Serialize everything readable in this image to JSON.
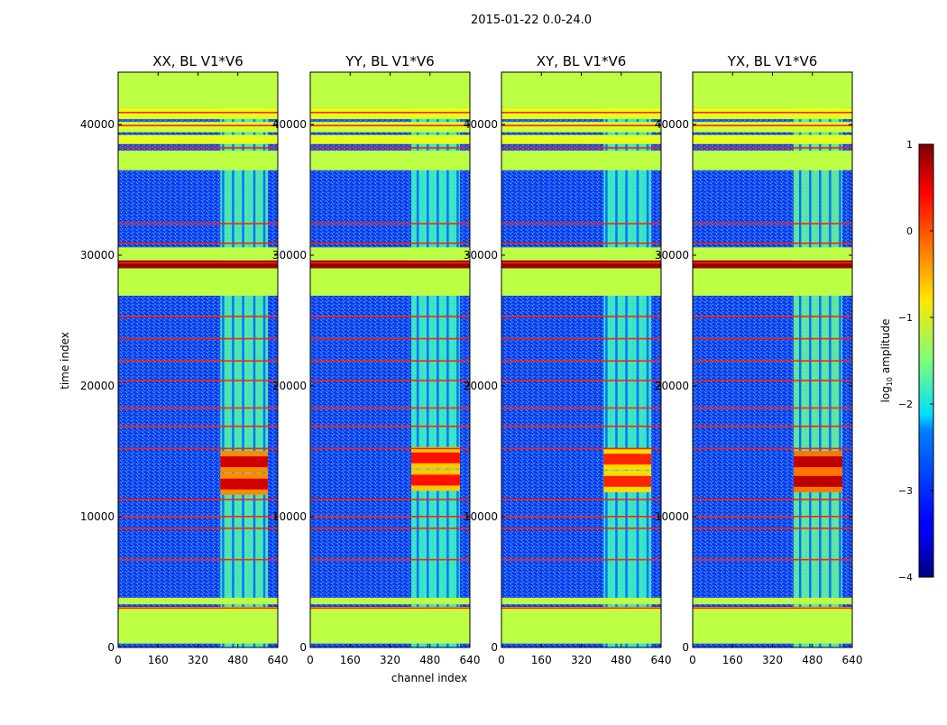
{
  "chart_data": {
    "type": "heatmap",
    "suptitle": "2015-01-22 0.0-24.0",
    "xlabel": "channel index",
    "ylabel": "time index",
    "xlim": [
      0,
      640
    ],
    "ylim": [
      0,
      44000
    ],
    "xticks": [
      0,
      160,
      320,
      480,
      640
    ],
    "yticks": [
      0,
      10000,
      20000,
      30000,
      40000
    ],
    "colorbar": {
      "label": "log10 amplitude",
      "label_base": "log",
      "label_sub": "10",
      "label_rest": " amplitude",
      "ticks": [
        1,
        0,
        -1,
        -2,
        -3,
        -4
      ],
      "vmin": -4,
      "vmax": 1,
      "colormap": "jet"
    },
    "panels": [
      {
        "title": "XX, BL V1*V6",
        "background": -2.9,
        "band_channels": [
          410,
          600
        ],
        "band_value": -1.7,
        "band_lines": [
          420,
          460,
          500,
          545,
          585
        ],
        "hot_rows": [
          12500,
          14200
        ],
        "hot_value": 0.6
      },
      {
        "title": "YY, BL V1*V6",
        "background": -2.9,
        "band_channels": [
          405,
          600
        ],
        "band_value": -1.8,
        "band_lines": [
          430,
          470,
          510,
          550,
          590
        ],
        "hot_rows": [
          12800,
          14500
        ],
        "hot_value": 0.3
      },
      {
        "title": "XY, BL V1*V6",
        "background": -2.9,
        "band_channels": [
          410,
          600
        ],
        "band_value": -1.8,
        "band_lines": [
          420,
          460,
          500,
          545,
          585
        ],
        "hot_rows": [
          12700,
          14400
        ],
        "hot_value": 0.2
      },
      {
        "title": "YX, BL V1*V6",
        "background": -2.9,
        "band_channels": [
          405,
          600
        ],
        "band_value": -1.6,
        "band_lines": [
          430,
          470,
          510,
          550,
          590
        ],
        "hot_rows": [
          12700,
          14200
        ],
        "hot_value": 0.7
      }
    ],
    "flagged_rows": [
      {
        "range": [
          300,
          2900
        ],
        "value": -1.2
      },
      {
        "range": [
          2900,
          3100
        ],
        "value": -0.8
      },
      {
        "range": [
          3300,
          3800
        ],
        "value": -1.2
      },
      {
        "range": [
          26900,
          29000
        ],
        "value": -1.2
      },
      {
        "range": [
          29000,
          29600
        ],
        "value": 0.9
      },
      {
        "range": [
          29600,
          30600
        ],
        "value": -1.2
      },
      {
        "range": [
          36500,
          38000
        ],
        "value": -1.2
      },
      {
        "range": [
          38500,
          39200
        ],
        "value": -1.0
      },
      {
        "range": [
          39400,
          40200
        ],
        "value": -1.1
      },
      {
        "range": [
          40400,
          41300
        ],
        "value": -1.0
      },
      {
        "range": [
          41300,
          44000
        ],
        "value": -1.2
      }
    ],
    "red_lines": [
      3000,
      6700,
      9100,
      10000,
      11300,
      15200,
      16900,
      18300,
      20400,
      21900,
      23600,
      25300,
      29400,
      30900,
      32400,
      38200,
      39900,
      40900
    ]
  }
}
